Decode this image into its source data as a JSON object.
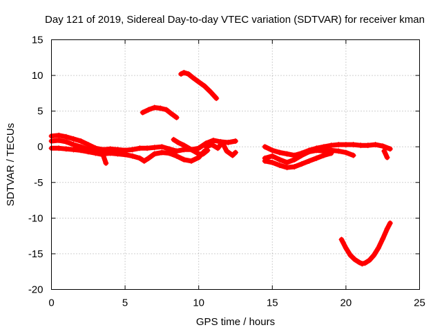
{
  "chart_data": {
    "type": "scatter",
    "title": "Day 121 of 2019, Sidereal Day-to-day VTEC variation (SDTVAR) for receiver kman",
    "xlabel": "GPS time / hours",
    "ylabel": "SDTVAR / TECUs",
    "xlim": [
      0,
      25
    ],
    "ylim": [
      -20,
      15
    ],
    "xticks": [
      0,
      5,
      10,
      15,
      20,
      25
    ],
    "yticks": [
      -20,
      -15,
      -10,
      -5,
      0,
      5,
      10,
      15
    ],
    "grid": true,
    "color": "#ff0000",
    "marker": "plus",
    "series": [
      {
        "name": "s1",
        "points": [
          [
            0,
            1.5
          ],
          [
            0.5,
            1.6
          ],
          [
            1.0,
            1.4
          ],
          [
            1.5,
            1.1
          ],
          [
            2.0,
            0.8
          ],
          [
            2.5,
            0.3
          ],
          [
            3.0,
            -0.2
          ],
          [
            3.5,
            -0.4
          ],
          [
            4.0,
            -0.3
          ],
          [
            4.5,
            -0.4
          ],
          [
            5.0,
            -0.5
          ],
          [
            5.5,
            -0.4
          ],
          [
            6.0,
            -0.2
          ],
          [
            6.5,
            -0.2
          ],
          [
            7.0,
            -0.1
          ],
          [
            7.5,
            0.0
          ],
          [
            8.0,
            -0.3
          ],
          [
            8.5,
            -0.6
          ],
          [
            9.0,
            -0.4
          ],
          [
            9.5,
            -0.4
          ],
          [
            10.0,
            -0.2
          ],
          [
            10.5,
            0.5
          ],
          [
            11.0,
            0.9
          ],
          [
            11.5,
            0.7
          ],
          [
            12.0,
            0.6
          ],
          [
            12.5,
            0.8
          ]
        ]
      },
      {
        "name": "s2",
        "points": [
          [
            0,
            0.8
          ],
          [
            0.5,
            0.9
          ],
          [
            1.0,
            0.7
          ],
          [
            1.5,
            0.3
          ],
          [
            2.0,
            0.0
          ],
          [
            2.5,
            -0.4
          ],
          [
            3.0,
            -0.8
          ],
          [
            3.5,
            -1.0
          ],
          [
            4.0,
            -0.9
          ],
          [
            4.5,
            -1.0
          ],
          [
            5.0,
            -1.1
          ],
          [
            5.5,
            -1.3
          ],
          [
            6.0,
            -1.6
          ],
          [
            6.3,
            -2.0
          ],
          [
            6.6,
            -1.6
          ],
          [
            7.0,
            -1.0
          ],
          [
            7.5,
            -0.8
          ],
          [
            8.0,
            -0.9
          ],
          [
            8.5,
            -1.3
          ],
          [
            9.0,
            -1.8
          ],
          [
            9.5,
            -2.0
          ],
          [
            10.0,
            -1.5
          ],
          [
            10.4,
            -0.6
          ]
        ]
      },
      {
        "name": "s3",
        "points": [
          [
            0,
            -0.2
          ],
          [
            0.5,
            -0.2
          ],
          [
            1.0,
            -0.3
          ],
          [
            1.5,
            -0.4
          ],
          [
            2.0,
            -0.5
          ],
          [
            2.5,
            -0.7
          ],
          [
            3.0,
            -0.9
          ],
          [
            3.5,
            -1.1
          ],
          [
            3.7,
            -2.3
          ]
        ]
      },
      {
        "name": "s4",
        "points": [
          [
            6.2,
            4.8
          ],
          [
            6.6,
            5.2
          ],
          [
            7.0,
            5.5
          ],
          [
            7.4,
            5.4
          ],
          [
            7.8,
            5.2
          ],
          [
            8.1,
            4.7
          ],
          [
            8.5,
            4.1
          ]
        ]
      },
      {
        "name": "s5",
        "points": [
          [
            8.8,
            10.2
          ],
          [
            9.0,
            10.4
          ],
          [
            9.3,
            10.2
          ],
          [
            9.6,
            9.7
          ],
          [
            10.0,
            9.1
          ],
          [
            10.4,
            8.5
          ],
          [
            10.8,
            7.7
          ],
          [
            11.2,
            6.8
          ]
        ]
      },
      {
        "name": "s6",
        "points": [
          [
            8.3,
            1.0
          ],
          [
            8.6,
            0.6
          ],
          [
            9.0,
            0.2
          ],
          [
            9.5,
            -0.4
          ],
          [
            10.0,
            -1.0
          ],
          [
            10.3,
            -1.0
          ],
          [
            10.6,
            -0.5
          ]
        ]
      },
      {
        "name": "s7",
        "points": [
          [
            10.5,
            0.0
          ],
          [
            10.9,
            0.3
          ],
          [
            11.3,
            -0.2
          ],
          [
            11.6,
            0.6
          ],
          [
            11.9,
            -0.6
          ],
          [
            12.3,
            -1.2
          ],
          [
            12.5,
            -0.8
          ]
        ]
      },
      {
        "name": "s8",
        "points": [
          [
            14.5,
            0.0
          ],
          [
            15.0,
            -0.5
          ],
          [
            15.5,
            -0.8
          ],
          [
            16.0,
            -1.0
          ],
          [
            16.5,
            -1.2
          ],
          [
            17.0,
            -0.9
          ],
          [
            17.5,
            -0.5
          ],
          [
            18.0,
            -0.2
          ],
          [
            18.5,
            0.0
          ],
          [
            19.0,
            0.2
          ],
          [
            19.5,
            0.3
          ],
          [
            20.0,
            0.3
          ],
          [
            20.5,
            0.3
          ],
          [
            21.0,
            0.2
          ],
          [
            21.5,
            0.2
          ],
          [
            22.0,
            0.3
          ],
          [
            22.5,
            0.1
          ],
          [
            23.0,
            -0.3
          ]
        ]
      },
      {
        "name": "s9",
        "points": [
          [
            14.5,
            -1.6
          ],
          [
            15.0,
            -1.3
          ],
          [
            15.5,
            -1.8
          ],
          [
            16.0,
            -2.2
          ],
          [
            16.5,
            -1.8
          ],
          [
            17.0,
            -1.2
          ],
          [
            17.5,
            -0.7
          ],
          [
            18.0,
            -0.5
          ],
          [
            18.5,
            -0.6
          ],
          [
            19.0,
            -0.5
          ],
          [
            19.5,
            -0.6
          ],
          [
            20.0,
            -0.8
          ],
          [
            20.5,
            -1.2
          ]
        ]
      },
      {
        "name": "s10",
        "points": [
          [
            14.5,
            -2.0
          ],
          [
            15.0,
            -2.2
          ],
          [
            15.5,
            -2.6
          ],
          [
            16.0,
            -2.9
          ],
          [
            16.5,
            -2.8
          ],
          [
            17.0,
            -2.4
          ],
          [
            17.5,
            -2.0
          ],
          [
            18.0,
            -1.6
          ],
          [
            18.5,
            -1.2
          ],
          [
            19.0,
            -0.9
          ]
        ]
      },
      {
        "name": "s11",
        "points": [
          [
            22.6,
            -0.6
          ],
          [
            22.8,
            -1.5
          ]
        ]
      },
      {
        "name": "s12",
        "points": [
          [
            19.7,
            -13.0
          ],
          [
            20.0,
            -14.2
          ],
          [
            20.3,
            -15.2
          ],
          [
            20.6,
            -15.8
          ],
          [
            20.9,
            -16.2
          ],
          [
            21.1,
            -16.4
          ],
          [
            21.3,
            -16.3
          ],
          [
            21.6,
            -15.9
          ],
          [
            21.9,
            -15.2
          ],
          [
            22.2,
            -14.2
          ],
          [
            22.5,
            -12.9
          ],
          [
            22.8,
            -11.5
          ],
          [
            23.0,
            -10.7
          ]
        ]
      }
    ]
  }
}
